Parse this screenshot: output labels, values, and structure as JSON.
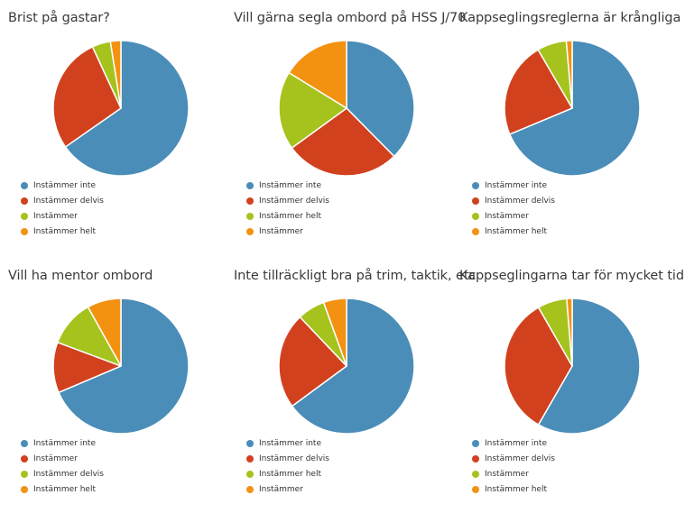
{
  "colors": [
    "#4a8db8",
    "#d2411e",
    "#a5c31c",
    "#f39211"
  ],
  "chart_data": [
    {
      "type": "pie",
      "title": "Brist på gastar?",
      "categories": [
        "Instämmer inte",
        "Instämmer delvis",
        "Instämmer",
        "Instämmer helt"
      ],
      "values": [
        65.3,
        27.8,
        4.4,
        2.5
      ],
      "legend": "bottom-left"
    },
    {
      "type": "pie",
      "title": "Vill gärna segla ombord på HSS J/70",
      "categories": [
        "Instämmer inte",
        "Instämmer delvis",
        "Instämmer helt",
        "Instämmer"
      ],
      "values": [
        37.6,
        27.4,
        18.8,
        16.2
      ],
      "legend": "bottom-left"
    },
    {
      "type": "pie",
      "title": "Kappseglingsreglerna är krångliga",
      "categories": [
        "Instämmer inte",
        "Instämmer delvis",
        "Instämmer",
        "Instämmer helt"
      ],
      "values": [
        68.7,
        22.9,
        7.0,
        1.4
      ],
      "legend": "bottom-left"
    },
    {
      "type": "pie",
      "title": "Vill ha mentor ombord",
      "categories": [
        "Instämmer inte",
        "Instämmer",
        "Instämmer delvis",
        "Instämmer helt"
      ],
      "values": [
        68.6,
        12.1,
        11.2,
        8.1
      ],
      "legend": "bottom-left"
    },
    {
      "type": "pie",
      "title": "Inte tillräckligt bra på trim, taktik, etc",
      "categories": [
        "Instämmer inte",
        "Instämmer delvis",
        "Instämmer helt",
        "Instämmer"
      ],
      "values": [
        64.9,
        23.0,
        6.6,
        5.5
      ],
      "legend": "bottom-left"
    },
    {
      "type": "pie",
      "title": "Kappseglingarna tar för mycket tid",
      "categories": [
        "Instämmer inte",
        "Instämmer delvis",
        "Instämmer",
        "Instämmer helt"
      ],
      "values": [
        58.3,
        33.4,
        7.0,
        1.3
      ],
      "legend": "bottom-left"
    }
  ]
}
